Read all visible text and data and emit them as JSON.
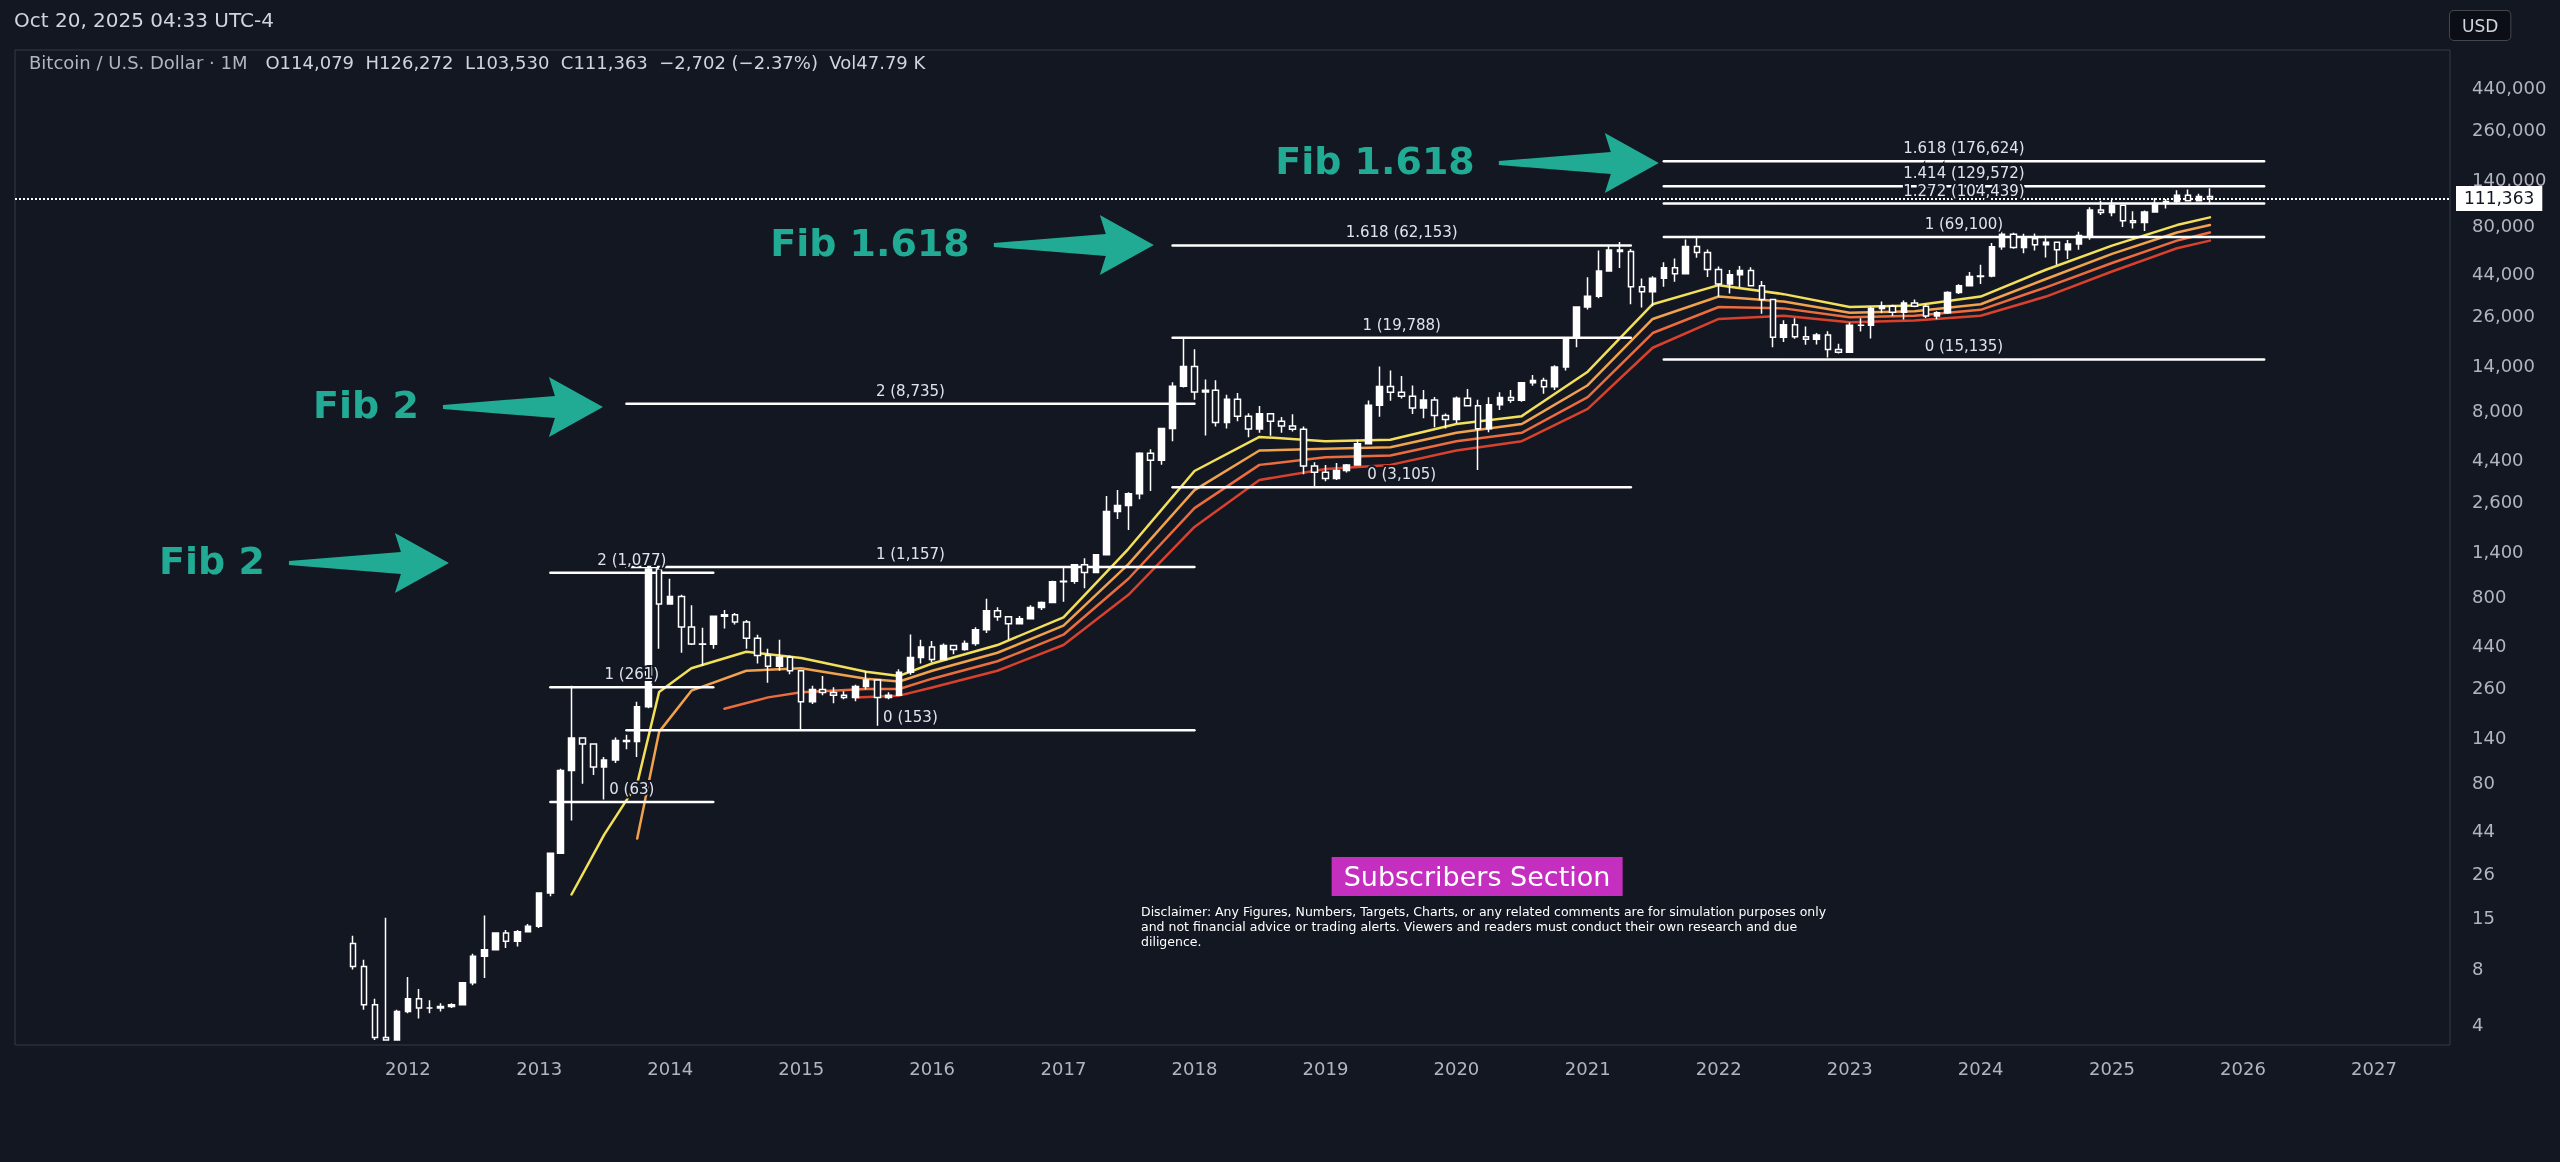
{
  "chart_data": {
    "type": "candlestick",
    "title": "Bitcoin / U.S. Dollar · 1M",
    "subtitle": "O114,079  H126,272  L103,530  C111,363  −2,702 (−2.37%)  Vol47.79 K",
    "ylabel": "USD",
    "log": true,
    "color": "#ffffff",
    "marker": "none",
    "xlim": [
      "2009-01",
      "2027-08"
    ],
    "xticks": [
      "2012",
      "2013",
      "2014",
      "2015",
      "2016",
      "2017",
      "2018",
      "2019",
      "2020",
      "2021",
      "2022",
      "2023",
      "2024",
      "2025",
      "2026",
      "2027"
    ],
    "ylim": [
      3.1,
      700000
    ],
    "yticks": [
      4,
      8,
      15,
      26,
      44,
      80,
      140,
      260,
      440,
      800,
      {
        "value": 1400,
        "label": "1,400"
      },
      {
        "value": 2600,
        "label": "2,600"
      },
      {
        "value": 4400,
        "label": "4,400"
      },
      {
        "value": 8000,
        "label": "8,000"
      },
      {
        "value": 14000,
        "label": "14,000"
      },
      {
        "value": 26000,
        "label": "26,000"
      },
      {
        "value": 44000,
        "label": "44,000"
      },
      {
        "value": 80000,
        "label": "80,000"
      },
      {
        "value": 140000,
        "label": "140,000"
      },
      {
        "value": 260000,
        "label": "260,000"
      },
      {
        "value": 440000,
        "label": "440,000"
      }
    ],
    "x": [
      "2011-08",
      "2011-09",
      "2011-10",
      "2011-11",
      "2011-12",
      "2012-01",
      "2012-02",
      "2012-03",
      "2012-04",
      "2012-05",
      "2012-06",
      "2012-07",
      "2012-08",
      "2012-09",
      "2012-10",
      "2012-11",
      "2012-12",
      "2013-01",
      "2013-02",
      "2013-03",
      "2013-04",
      "2013-05",
      "2013-06",
      "2013-07",
      "2013-08",
      "2013-09",
      "2013-10",
      "2013-11",
      "2013-12",
      "2014-01",
      "2014-02",
      "2014-03",
      "2014-04",
      "2014-05",
      "2014-06",
      "2014-07",
      "2014-08",
      "2014-09",
      "2014-10",
      "2014-11",
      "2014-12",
      "2015-01",
      "2015-02",
      "2015-03",
      "2015-04",
      "2015-05",
      "2015-06",
      "2015-07",
      "2015-08",
      "2015-09",
      "2015-10",
      "2015-11",
      "2015-12",
      "2016-01",
      "2016-02",
      "2016-03",
      "2016-04",
      "2016-05",
      "2016-06",
      "2016-07",
      "2016-08",
      "2016-09",
      "2016-10",
      "2016-11",
      "2016-12",
      "2017-01",
      "2017-02",
      "2017-03",
      "2017-04",
      "2017-05",
      "2017-06",
      "2017-07",
      "2017-08",
      "2017-09",
      "2017-10",
      "2017-11",
      "2017-12",
      "2018-01",
      "2018-02",
      "2018-03",
      "2018-04",
      "2018-05",
      "2018-06",
      "2018-07",
      "2018-08",
      "2018-09",
      "2018-10",
      "2018-11",
      "2018-12",
      "2019-01",
      "2019-02",
      "2019-03",
      "2019-04",
      "2019-05",
      "2019-06",
      "2019-07",
      "2019-08",
      "2019-09",
      "2019-10",
      "2019-11",
      "2019-12",
      "2020-01",
      "2020-02",
      "2020-03",
      "2020-04",
      "2020-05",
      "2020-06",
      "2020-07",
      "2020-08",
      "2020-09",
      "2020-10",
      "2020-11",
      "2020-12",
      "2021-01",
      "2021-02",
      "2021-03",
      "2021-04",
      "2021-05",
      "2021-06",
      "2021-07",
      "2021-08",
      "2021-09",
      "2021-10",
      "2021-11",
      "2021-12",
      "2022-01",
      "2022-02",
      "2022-03",
      "2022-04",
      "2022-05",
      "2022-06",
      "2022-07",
      "2022-08",
      "2022-09",
      "2022-10",
      "2022-11",
      "2022-12",
      "2023-01",
      "2023-02",
      "2023-03",
      "2023-04",
      "2023-05",
      "2023-06",
      "2023-07",
      "2023-08",
      "2023-09",
      "2023-10",
      "2023-11",
      "2023-12",
      "2024-01",
      "2024-02",
      "2024-03",
      "2024-04",
      "2024-05",
      "2024-06",
      "2024-07",
      "2024-08",
      "2024-09",
      "2024-10",
      "2024-11",
      "2024-12",
      "2025-01",
      "2025-02",
      "2025-03",
      "2025-04",
      "2025-05",
      "2025-06",
      "2025-07",
      "2025-08",
      "2025-09",
      "2025-10"
    ],
    "ohlc": [
      [
        10.9,
        12,
        7.9,
        8.2
      ],
      [
        8.2,
        8.9,
        4.8,
        5.1
      ],
      [
        5.1,
        5.5,
        3.3,
        3.4
      ],
      [
        3.4,
        15,
        3.3,
        3.3
      ],
      [
        3.3,
        4.8,
        3.3,
        4.7
      ],
      [
        4.7,
        7.2,
        4.6,
        5.5
      ],
      [
        5.5,
        6.2,
        4.3,
        4.9
      ],
      [
        4.9,
        5.4,
        4.6,
        4.9
      ],
      [
        4.9,
        5.2,
        4.7,
        5.0
      ],
      [
        5.0,
        5.2,
        4.9,
        5.1
      ],
      [
        5.1,
        6.7,
        5.1,
        6.7
      ],
      [
        6.7,
        9.6,
        6.5,
        9.3
      ],
      [
        9.3,
        15.4,
        7.1,
        10.1
      ],
      [
        10.1,
        12.5,
        10.0,
        12.4
      ],
      [
        12.4,
        12.9,
        10.3,
        11.2
      ],
      [
        11.2,
        12.9,
        10.5,
        12.6
      ],
      [
        12.6,
        13.9,
        12.6,
        13.5
      ],
      [
        13.5,
        20.4,
        13.2,
        20.4
      ],
      [
        20.4,
        33.5,
        19.6,
        33.4
      ],
      [
        33.4,
        95,
        33,
        93
      ],
      [
        93,
        266,
        50,
        139
      ],
      [
        139,
        140,
        79,
        129
      ],
      [
        129,
        129,
        88,
        97
      ],
      [
        97,
        110,
        65,
        106
      ],
      [
        106,
        140,
        102,
        135
      ],
      [
        135,
        145,
        121,
        133
      ],
      [
        133,
        218,
        110,
        205
      ],
      [
        205,
        1163,
        201,
        1128
      ],
      [
        1128,
        1159,
        420,
        732
      ],
      [
        732,
        1000,
        730,
        802
      ],
      [
        802,
        820,
        400,
        550
      ],
      [
        550,
        720,
        440,
        445
      ],
      [
        445,
        545,
        340,
        444
      ],
      [
        444,
        635,
        420,
        628
      ],
      [
        628,
        680,
        540,
        640
      ],
      [
        640,
        655,
        567,
        586
      ],
      [
        586,
        600,
        420,
        478
      ],
      [
        478,
        500,
        350,
        387
      ],
      [
        387,
        420,
        276,
        338
      ],
      [
        338,
        470,
        320,
        378
      ],
      [
        378,
        386,
        306,
        320
      ],
      [
        320,
        320,
        152,
        218
      ],
      [
        218,
        266,
        212,
        254
      ],
      [
        254,
        300,
        236,
        244
      ],
      [
        244,
        261,
        214,
        236
      ],
      [
        236,
        248,
        225,
        230
      ],
      [
        230,
        269,
        219,
        263
      ],
      [
        263,
        318,
        254,
        285
      ],
      [
        285,
        286,
        162,
        230
      ],
      [
        230,
        245,
        225,
        236
      ],
      [
        236,
        326,
        235,
        314
      ],
      [
        314,
        502,
        304,
        377
      ],
      [
        377,
        470,
        350,
        430
      ],
      [
        430,
        462,
        355,
        368
      ],
      [
        368,
        448,
        365,
        437
      ],
      [
        437,
        440,
        392,
        416
      ],
      [
        416,
        466,
        410,
        448
      ],
      [
        448,
        548,
        436,
        531
      ],
      [
        531,
        780,
        510,
        673
      ],
      [
        673,
        703,
        594,
        624
      ],
      [
        624,
        628,
        470,
        573
      ],
      [
        573,
        630,
        568,
        609
      ],
      [
        609,
        720,
        604,
        700
      ],
      [
        700,
        754,
        680,
        745
      ],
      [
        745,
        975,
        740,
        964
      ],
      [
        964,
        1153,
        752,
        970
      ],
      [
        970,
        1200,
        940,
        1190
      ],
      [
        1190,
        1290,
        890,
        1080
      ],
      [
        1080,
        1350,
        1080,
        1348
      ],
      [
        1348,
        2790,
        1340,
        2300
      ],
      [
        2300,
        3000,
        2100,
        2480
      ],
      [
        2480,
        2920,
        1830,
        2870
      ],
      [
        2870,
        4800,
        2680,
        4740
      ],
      [
        4740,
        4980,
        2970,
        4340
      ],
      [
        4340,
        6450,
        4110,
        6440
      ],
      [
        6440,
        11400,
        5500,
        10860
      ],
      [
        10860,
        19666,
        10700,
        13880
      ],
      [
        13880,
        17170,
        9200,
        10100
      ],
      [
        10100,
        11800,
        5900,
        10330
      ],
      [
        10330,
        11700,
        6600,
        6930
      ],
      [
        6930,
        9770,
        6430,
        9240
      ],
      [
        9240,
        10000,
        7040,
        7490
      ],
      [
        7490,
        7770,
        5770,
        6390
      ],
      [
        6390,
        8500,
        6100,
        7730
      ],
      [
        7730,
        7760,
        5880,
        7030
      ],
      [
        7030,
        7410,
        6100,
        6630
      ],
      [
        6630,
        7680,
        6200,
        6370
      ],
      [
        6370,
        6600,
        3650,
        4040
      ],
      [
        4040,
        4240,
        3120,
        3740
      ],
      [
        3740,
        4100,
        3350,
        3460
      ],
      [
        3460,
        4200,
        3400,
        3820
      ],
      [
        3820,
        4140,
        3730,
        4100
      ],
      [
        4100,
        5600,
        4080,
        5330
      ],
      [
        5330,
        9100,
        5310,
        8580
      ],
      [
        8580,
        13880,
        7450,
        10820
      ],
      [
        10820,
        13200,
        9070,
        10090
      ],
      [
        10090,
        12330,
        9330,
        9600
      ],
      [
        9600,
        10950,
        7710,
        8300
      ],
      [
        8300,
        10370,
        7300,
        9150
      ],
      [
        9150,
        9500,
        6530,
        7550
      ],
      [
        7550,
        7750,
        6430,
        7200
      ],
      [
        7200,
        9580,
        6860,
        9350
      ],
      [
        9350,
        10500,
        8450,
        8530
      ],
      [
        8530,
        9190,
        3850,
        6410
      ],
      [
        6410,
        9470,
        6150,
        8630
      ],
      [
        8630,
        10070,
        8100,
        9450
      ],
      [
        9450,
        10380,
        8850,
        9140
      ],
      [
        9140,
        11450,
        8970,
        11340
      ],
      [
        11340,
        12470,
        10930,
        11650
      ],
      [
        11650,
        12070,
        9890,
        10780
      ],
      [
        10780,
        14100,
        10370,
        13800
      ],
      [
        13800,
        19900,
        13220,
        19700
      ],
      [
        19700,
        29300,
        17600,
        28980
      ],
      [
        28980,
        41950,
        28130,
        33140
      ],
      [
        33140,
        58350,
        32300,
        45240
      ],
      [
        45240,
        61780,
        45000,
        58800
      ],
      [
        58800,
        64900,
        47000,
        57700
      ],
      [
        57700,
        59500,
        30000,
        37300
      ],
      [
        37300,
        41300,
        28800,
        35040
      ],
      [
        35040,
        42400,
        29300,
        41460
      ],
      [
        41460,
        50500,
        37300,
        47100
      ],
      [
        47100,
        52900,
        39600,
        43800
      ],
      [
        43800,
        67000,
        43300,
        61300
      ],
      [
        61300,
        69000,
        53400,
        57000
      ],
      [
        57000,
        59100,
        42000,
        46200
      ],
      [
        46200,
        47900,
        32900,
        38500
      ],
      [
        38500,
        45800,
        34300,
        43200
      ],
      [
        43200,
        48200,
        37200,
        45500
      ],
      [
        45500,
        47400,
        37700,
        37700
      ],
      [
        37700,
        40000,
        26700,
        31800
      ],
      [
        31800,
        31900,
        17600,
        19950
      ],
      [
        19950,
        24600,
        18800,
        23300
      ],
      [
        23300,
        25200,
        19550,
        20050
      ],
      [
        20050,
        22800,
        18150,
        19420
      ],
      [
        19420,
        21000,
        18200,
        20500
      ],
      [
        20500,
        21450,
        15500,
        17150
      ],
      [
        17150,
        18370,
        16300,
        16540
      ],
      [
        16540,
        23900,
        16500,
        23130
      ],
      [
        23130,
        25250,
        21400,
        23150
      ],
      [
        23150,
        29200,
        19600,
        28470
      ],
      [
        28470,
        31000,
        26950,
        29250
      ],
      [
        29250,
        29800,
        25900,
        27200
      ],
      [
        27200,
        31400,
        24800,
        30480
      ],
      [
        30480,
        31800,
        28900,
        29230
      ],
      [
        29230,
        30200,
        25300,
        25930
      ],
      [
        25930,
        27500,
        24900,
        26970
      ],
      [
        26970,
        35200,
        26560,
        34650
      ],
      [
        34650,
        38400,
        34100,
        37720
      ],
      [
        37720,
        44700,
        37600,
        42280
      ],
      [
        42280,
        48970,
        38500,
        42580
      ],
      [
        42580,
        64000,
        41900,
        61200
      ],
      [
        61200,
        73800,
        59000,
        71300
      ],
      [
        71300,
        72800,
        59600,
        60600
      ],
      [
        60600,
        71900,
        56500,
        67500
      ],
      [
        67500,
        72000,
        58400,
        62700
      ],
      [
        62700,
        70000,
        53500,
        64600
      ],
      [
        64600,
        65100,
        49000,
        58900
      ],
      [
        58900,
        66500,
        52500,
        63300
      ],
      [
        63300,
        73600,
        58900,
        70200
      ],
      [
        70200,
        99800,
        66800,
        96400
      ],
      [
        96400,
        108300,
        90500,
        93400
      ],
      [
        93400,
        109300,
        89200,
        102400
      ],
      [
        102400,
        102500,
        78200,
        84300
      ],
      [
        84300,
        95000,
        76600,
        82500
      ],
      [
        82500,
        95800,
        74400,
        94200
      ],
      [
        94200,
        111900,
        93400,
        104600
      ],
      [
        104600,
        110600,
        98200,
        107100
      ],
      [
        107100,
        123200,
        105100,
        115700
      ],
      [
        115700,
        124500,
        107300,
        108200
      ],
      [
        108200,
        117900,
        107200,
        114100
      ],
      [
        114079,
        126272,
        103530,
        111363
      ]
    ],
    "series": [
      {
        "type": "line",
        "color": "#f3e05a",
        "x": [
          "2013-04",
          "2013-07",
          "2013-10",
          "2013-12",
          "2014-03",
          "2014-08",
          "2015-01",
          "2015-07",
          "2015-10",
          "2016-01",
          "2016-07",
          "2017-01",
          "2017-07",
          "2018-01",
          "2018-07",
          "2019-01",
          "2019-07",
          "2020-01",
          "2020-07",
          "2021-01",
          "2021-07",
          "2022-01",
          "2022-07",
          "2023-01",
          "2023-07",
          "2024-01",
          "2024-07",
          "2025-01",
          "2025-07",
          "2025-10"
        ],
        "values": [
          20,
          42,
          79,
          246,
          330,
          405,
          375,
          316,
          300,
          350,
          440,
          620,
          1450,
          3800,
          5800,
          5500,
          5600,
          6800,
          7500,
          13000,
          30000,
          38000,
          34000,
          29000,
          29500,
          33000,
          46000,
          62000,
          80000,
          88000
        ]
      },
      {
        "type": "line",
        "color": "#f2a24c",
        "x": [
          "2013-10",
          "2013-12",
          "2014-03",
          "2014-08",
          "2015-01",
          "2015-07",
          "2015-10",
          "2016-01",
          "2016-07",
          "2017-01",
          "2017-07",
          "2018-01",
          "2018-07",
          "2019-01",
          "2019-07",
          "2020-01",
          "2020-07",
          "2021-01",
          "2021-07",
          "2022-01",
          "2022-07",
          "2023-01",
          "2023-07",
          "2024-01",
          "2024-07",
          "2025-01",
          "2025-07",
          "2025-10"
        ],
        "values": [
          40,
          150,
          250,
          320,
          330,
          290,
          280,
          320,
          400,
          560,
          1200,
          3000,
          4900,
          5000,
          5100,
          6100,
          6800,
          11000,
          25000,
          33000,
          31000,
          27000,
          27500,
          30000,
          41000,
          56000,
          73000,
          80000
        ]
      },
      {
        "type": "line",
        "color": "#ec6c3e",
        "x": [
          "2014-06",
          "2014-10",
          "2015-01",
          "2015-07",
          "2015-10",
          "2016-01",
          "2016-07",
          "2017-01",
          "2017-07",
          "2018-01",
          "2018-07",
          "2019-01",
          "2019-07",
          "2020-01",
          "2020-07",
          "2021-01",
          "2021-07",
          "2022-01",
          "2022-07",
          "2023-01",
          "2023-07",
          "2024-01",
          "2024-07",
          "2025-01",
          "2025-07",
          "2025-10"
        ],
        "values": [
          200,
          230,
          245,
          255,
          255,
          290,
          360,
          500,
          1000,
          2400,
          4100,
          4500,
          4600,
          5500,
          6100,
          9500,
          21000,
          29000,
          28500,
          25500,
          26000,
          28000,
          37000,
          50000,
          66000,
          73000
        ]
      },
      {
        "type": "line",
        "color": "#d9412d",
        "x": [
          "2015-06",
          "2015-10",
          "2016-01",
          "2016-07",
          "2017-01",
          "2017-07",
          "2018-01",
          "2018-07",
          "2019-01",
          "2019-07",
          "2020-01",
          "2020-07",
          "2021-01",
          "2021-07",
          "2022-01",
          "2022-07",
          "2023-01",
          "2023-07",
          "2024-01",
          "2024-07",
          "2025-01",
          "2025-07",
          "2025-10"
        ],
        "values": [
          230,
          235,
          260,
          320,
          440,
          820,
          1900,
          3400,
          3900,
          4100,
          4900,
          5500,
          8200,
          17500,
          25000,
          26000,
          24000,
          24500,
          26000,
          33000,
          45000,
          60000,
          66000
        ]
      },
      {
        "type": "line",
        "name": "0 (63)",
        "color": "#ffffff",
        "x": [
          "2013-02",
          "2014-05"
        ],
        "values": [
          63,
          63
        ]
      },
      {
        "type": "line",
        "name": "1 (261)",
        "color": "#ffffff",
        "x": [
          "2013-02",
          "2014-05"
        ],
        "values": [
          261,
          261
        ]
      },
      {
        "type": "line",
        "name": "2 (1,077)",
        "color": "#ffffff",
        "x": [
          "2013-02",
          "2014-05"
        ],
        "values": [
          1077,
          1077
        ]
      },
      {
        "type": "line",
        "name": "0 (153)",
        "color": "#ffffff",
        "x": [
          "2013-09",
          "2018-01"
        ],
        "values": [
          153,
          153
        ]
      },
      {
        "type": "line",
        "name": "1 (1,157)",
        "color": "#ffffff",
        "x": [
          "2013-09",
          "2018-01"
        ],
        "values": [
          1157,
          1157
        ]
      },
      {
        "type": "line",
        "name": "2 (8,735)",
        "color": "#ffffff",
        "x": [
          "2013-09",
          "2018-01"
        ],
        "values": [
          8735,
          8735
        ]
      },
      {
        "type": "line",
        "name": "0 (3,105)",
        "color": "#ffffff",
        "x": [
          "2017-11",
          "2021-05"
        ],
        "values": [
          3105,
          3105
        ]
      },
      {
        "type": "line",
        "name": "1 (19,788)",
        "color": "#ffffff",
        "x": [
          "2017-11",
          "2021-05"
        ],
        "values": [
          19788,
          19788
        ]
      },
      {
        "type": "line",
        "name": "1.618 (62,153)",
        "color": "#ffffff",
        "x": [
          "2017-11",
          "2021-05"
        ],
        "values": [
          62153,
          62153
        ]
      },
      {
        "type": "line",
        "name": "0 (15,135)",
        "color": "#ffffff",
        "x": [
          "2021-08",
          "2026-03"
        ],
        "values": [
          15135,
          15135
        ]
      },
      {
        "type": "line",
        "name": "1 (69,100)",
        "color": "#ffffff",
        "x": [
          "2021-08",
          "2026-03"
        ],
        "values": [
          69100,
          69100
        ]
      },
      {
        "type": "line",
        "name": "1.272 (104,439)",
        "color": "#ffffff",
        "x": [
          "2021-08",
          "2026-03"
        ],
        "values": [
          104439,
          104439
        ]
      },
      {
        "type": "line",
        "name": "1.414 (129,572)",
        "color": "#ffffff",
        "x": [
          "2021-08",
          "2026-03"
        ],
        "values": [
          129572,
          129572
        ]
      },
      {
        "type": "line",
        "name": "1.618 (176,624)",
        "color": "#ffffff",
        "x": [
          "2021-08",
          "2026-03"
        ],
        "values": [
          176624,
          176624
        ]
      }
    ],
    "ref_lines": [
      {
        "axis": "y",
        "value": 111363,
        "label": "111,363",
        "color": "#ffffff",
        "line_style": "dotted"
      }
    ],
    "annotations": [
      "Oct 20, 2025 04:33 UTC-4",
      "Subscribers Section",
      "Disclaimer: Any Figures, Numbers, Targets, Charts, or any related comments are for simulation purposes only and not financial advice or trading alerts. Viewers and readers must conduct their own research and due diligence.",
      "Fib 2",
      "Fib 2",
      "Fib 1.618",
      "Fib 1.618"
    ]
  }
}
